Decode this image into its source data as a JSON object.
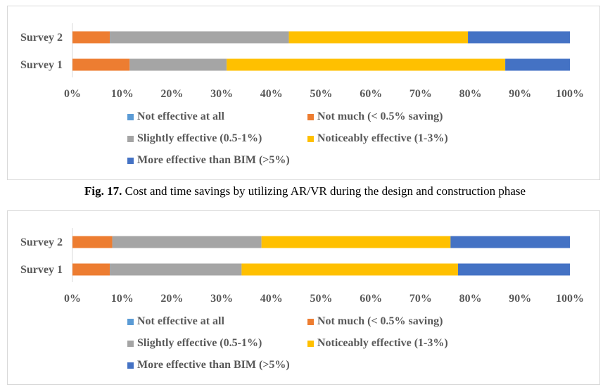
{
  "caption": {
    "label": "Fig. 17.",
    "text": " Cost and time savings by utilizing AR/VR during the design and construction phase"
  },
  "colors": {
    "Not effective at all": "#5b9bd5",
    "Not much (< 0.5% saving)": "#ed7d31",
    "Slightly effective (0.5-1%)": "#a5a5a5",
    "Noticeably effective (1-3%)": "#ffc000",
    "More effective than BIM (>5%)": "#4472c4"
  },
  "chart_data": [
    {
      "type": "bar",
      "orientation": "horizontal",
      "stacked": "percent",
      "categories": [
        "Survey 2",
        "Survey 1"
      ],
      "series": [
        {
          "name": "Not effective at all",
          "values": [
            0,
            0
          ]
        },
        {
          "name": "Not much (< 0.5% saving)",
          "values": [
            7.5,
            11.5
          ]
        },
        {
          "name": "Slightly effective (0.5-1%)",
          "values": [
            36,
            19.5
          ]
        },
        {
          "name": "Noticeably effective (1-3%)",
          "values": [
            36,
            56
          ]
        },
        {
          "name": "More effective than BIM (>5%)",
          "values": [
            20.5,
            13
          ]
        }
      ],
      "xlim": [
        0,
        100
      ],
      "xticks": [
        "0%",
        "10%",
        "20%",
        "30%",
        "40%",
        "50%",
        "60%",
        "70%",
        "80%",
        "90%",
        "100%"
      ],
      "legend": "bottom",
      "grid": false
    },
    {
      "type": "bar",
      "orientation": "horizontal",
      "stacked": "percent",
      "categories": [
        "Survey 2",
        "Survey 1"
      ],
      "series": [
        {
          "name": "Not effective at all",
          "values": [
            0,
            0
          ]
        },
        {
          "name": "Not much (< 0.5% saving)",
          "values": [
            8,
            7.5
          ]
        },
        {
          "name": "Slightly effective (0.5-1%)",
          "values": [
            30,
            26.5
          ]
        },
        {
          "name": "Noticeably effective (1-3%)",
          "values": [
            38,
            43.5
          ]
        },
        {
          "name": "More effective than BIM (>5%)",
          "values": [
            24,
            22.5
          ]
        }
      ],
      "xlim": [
        0,
        100
      ],
      "xticks": [
        "0%",
        "10%",
        "20%",
        "30%",
        "40%",
        "50%",
        "60%",
        "70%",
        "80%",
        "90%",
        "100%"
      ],
      "legend": "bottom",
      "grid": false
    }
  ]
}
